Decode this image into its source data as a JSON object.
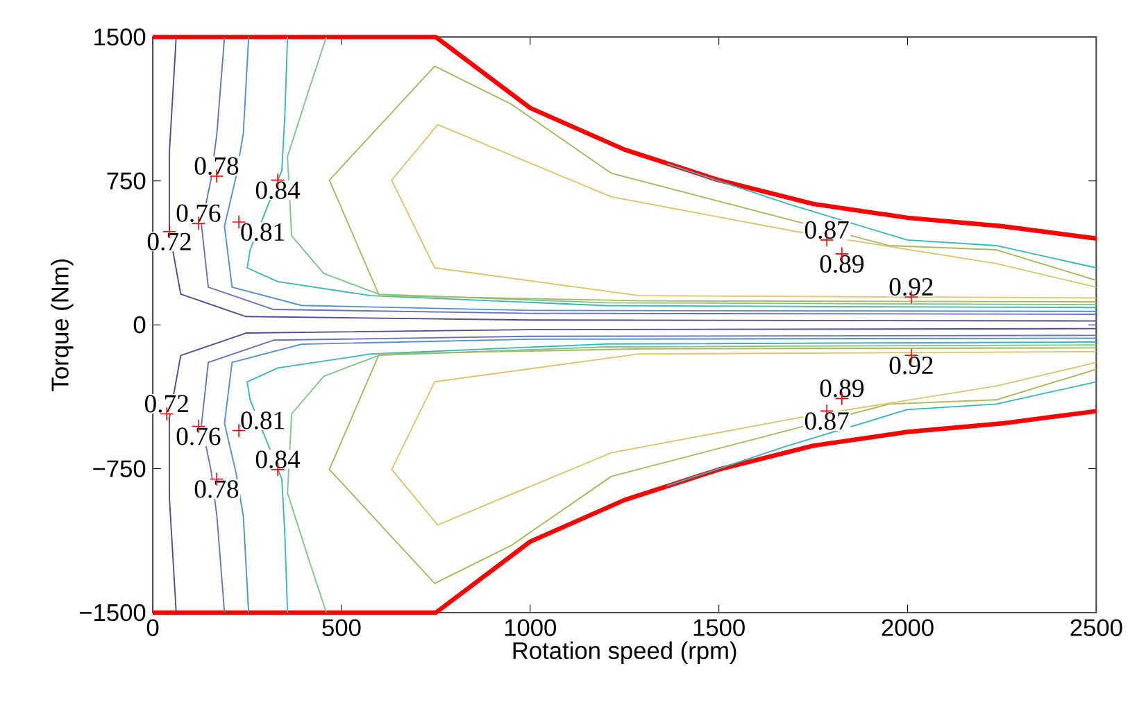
{
  "chart_data": {
    "type": "line",
    "xlabel": "Rotation speed (rpm)",
    "ylabel": "Torque (Nm)",
    "xlim": [
      0,
      2500
    ],
    "ylim": [
      -1500,
      1500
    ],
    "xticks": [
      0,
      500,
      1000,
      1500,
      2000,
      2500
    ],
    "yticks": [
      {
        "value": -1500,
        "label": "−1500"
      },
      {
        "value": -750,
        "label": "−750"
      },
      0,
      750,
      1500
    ],
    "grid": false,
    "marker": "none",
    "line_style": "solid",
    "series": [
      {
        "color": "#ff0000",
        "x": [
          0,
          750,
          1000,
          1250,
          1500,
          1750,
          2000,
          2250,
          2500
        ],
        "values": [
          1500,
          1500,
          1130,
          913,
          754,
          630,
          558,
          514,
          450
        ]
      },
      {
        "color": "#ff0000",
        "x": [
          0,
          750,
          1000,
          1250,
          1500,
          1750,
          2000,
          2250,
          2500
        ],
        "values": [
          -1500,
          -1500,
          -1130,
          -913,
          -754,
          -630,
          -558,
          -514,
          -450
        ]
      },
      {
        "color": "#52479a",
        "x": [
          62,
          44,
          44,
          74,
          247,
          1000,
          2500
        ],
        "values": [
          1500,
          900,
          486,
          160,
          43,
          25,
          20
        ]
      },
      {
        "color": "#6a6fc6",
        "x": [
          190,
          170,
          154,
          129,
          147,
          320,
          1000,
          2500
        ],
        "values": [
          1500,
          1000,
          754,
          522,
          196,
          80,
          60,
          55
        ]
      },
      {
        "color": "#4f8fd6",
        "x": [
          254,
          240,
          221,
          190,
          210,
          394,
          1000,
          2500
        ],
        "values": [
          1500,
          1000,
          775,
          514,
          196,
          101,
          75,
          70
        ]
      },
      {
        "color": "#36b7b8",
        "x": [
          357,
          350,
          342,
          258,
          250,
          331,
          578,
          1200,
          2500
        ],
        "values": [
          1500,
          1100,
          804,
          391,
          297,
          225,
          152,
          100,
          90
        ]
      },
      {
        "color": "#7cc48a",
        "x": [
          460,
          416,
          357,
          368,
          453,
          600,
          1200,
          2500
        ],
        "values": [
          1500,
          1239,
          877,
          464,
          268,
          159,
          115,
          105
        ]
      },
      {
        "color": "#a8b85a",
        "x": [
          2500,
          2235,
          1951,
          1215,
          950,
          747,
          468,
          600,
          1300,
          2500
        ],
        "values": [
          232,
          391,
          413,
          790,
          1150,
          1348,
          754,
          152,
          125,
          120
        ]
      },
      {
        "color": "#dcc46a",
        "x": [
          2500,
          2235,
          1705,
          1215,
          755,
          633,
          747,
          1289,
          2500
        ],
        "values": [
          196,
          319,
          486,
          667,
          1043,
          754,
          297,
          152,
          140
        ]
      },
      {
        "color": "#36b7b8",
        "x": [
          1362,
          1683,
          1999,
          2235,
          2500
        ],
        "values": [
          840,
          630,
          442,
          413,
          297
        ]
      },
      {
        "color": "#52479a",
        "x": [
          62,
          44,
          44,
          74,
          247,
          1000,
          2500
        ],
        "values": [
          -1500,
          -900,
          -486,
          -160,
          -43,
          -25,
          -20
        ]
      },
      {
        "color": "#6a6fc6",
        "x": [
          190,
          170,
          154,
          129,
          147,
          320,
          1000,
          2500
        ],
        "values": [
          -1500,
          -1000,
          -754,
          -522,
          -196,
          -80,
          -60,
          -55
        ]
      },
      {
        "color": "#4f8fd6",
        "x": [
          254,
          240,
          221,
          190,
          210,
          394,
          1000,
          2500
        ],
        "values": [
          -1500,
          -1000,
          -775,
          -514,
          -196,
          -101,
          -75,
          -70
        ]
      },
      {
        "color": "#36b7b8",
        "x": [
          357,
          350,
          342,
          258,
          250,
          331,
          578,
          1200,
          2500
        ],
        "values": [
          -1500,
          -1100,
          -804,
          -391,
          -297,
          -225,
          -152,
          -100,
          -90
        ]
      },
      {
        "color": "#7cc48a",
        "x": [
          460,
          416,
          357,
          368,
          453,
          600,
          1200,
          2500
        ],
        "values": [
          -1500,
          -1239,
          -877,
          -464,
          -268,
          -159,
          -115,
          -105
        ]
      },
      {
        "color": "#a8b85a",
        "x": [
          2500,
          2235,
          1951,
          1215,
          950,
          747,
          468,
          600,
          1300,
          2500
        ],
        "values": [
          -232,
          -391,
          -413,
          -790,
          -1150,
          -1348,
          -754,
          -152,
          -125,
          -120
        ]
      },
      {
        "color": "#dcc46a",
        "x": [
          2500,
          2235,
          1705,
          1215,
          755,
          633,
          747,
          1289,
          2500
        ],
        "values": [
          -196,
          -319,
          -486,
          -667,
          -1043,
          -754,
          -297,
          -152,
          -140
        ]
      },
      {
        "color": "#36b7b8",
        "x": [
          1362,
          1683,
          1999,
          2235,
          2500
        ],
        "values": [
          -840,
          -630,
          -442,
          -413,
          -297
        ]
      },
      {
        "type": "scatter",
        "marker": "cross",
        "color": "#ff0000",
        "x": [
          169,
          121,
          44,
          228,
          331,
          1786,
          1826,
          2010,
          37,
          228,
          121,
          331,
          169,
          1826,
          2010,
          1786
        ],
        "values": [
          775,
          529,
          486,
          536,
          754,
          442,
          370,
          145,
          -464,
          -551,
          -529,
          -754,
          -804,
          -384,
          -159,
          -449
        ]
      }
    ],
    "annotations": [
      {
        "text": "0.78",
        "x": 169,
        "y": 775
      },
      {
        "text": "0.76",
        "x": 121,
        "y": 529
      },
      {
        "text": "0.72",
        "x": 44,
        "y": 486
      },
      {
        "text": "0.81",
        "x": 228,
        "y": 536
      },
      {
        "text": "0.84",
        "x": 331,
        "y": 754
      },
      {
        "text": "0.87",
        "x": 1786,
        "y": 442
      },
      {
        "text": "0.89",
        "x": 1826,
        "y": 370
      },
      {
        "text": "0.92",
        "x": 2010,
        "y": 145
      },
      {
        "text": "0.72",
        "x": 37,
        "y": -464
      },
      {
        "text": "0.81",
        "x": 228,
        "y": -551
      },
      {
        "text": "0.76",
        "x": 121,
        "y": -529
      },
      {
        "text": "0.84",
        "x": 331,
        "y": -754
      },
      {
        "text": "0.78",
        "x": 169,
        "y": -804
      },
      {
        "text": "0.89",
        "x": 1826,
        "y": -384
      },
      {
        "text": "0.92",
        "x": 2010,
        "y": -159
      },
      {
        "text": "0.87",
        "x": 1786,
        "y": -449
      }
    ]
  }
}
